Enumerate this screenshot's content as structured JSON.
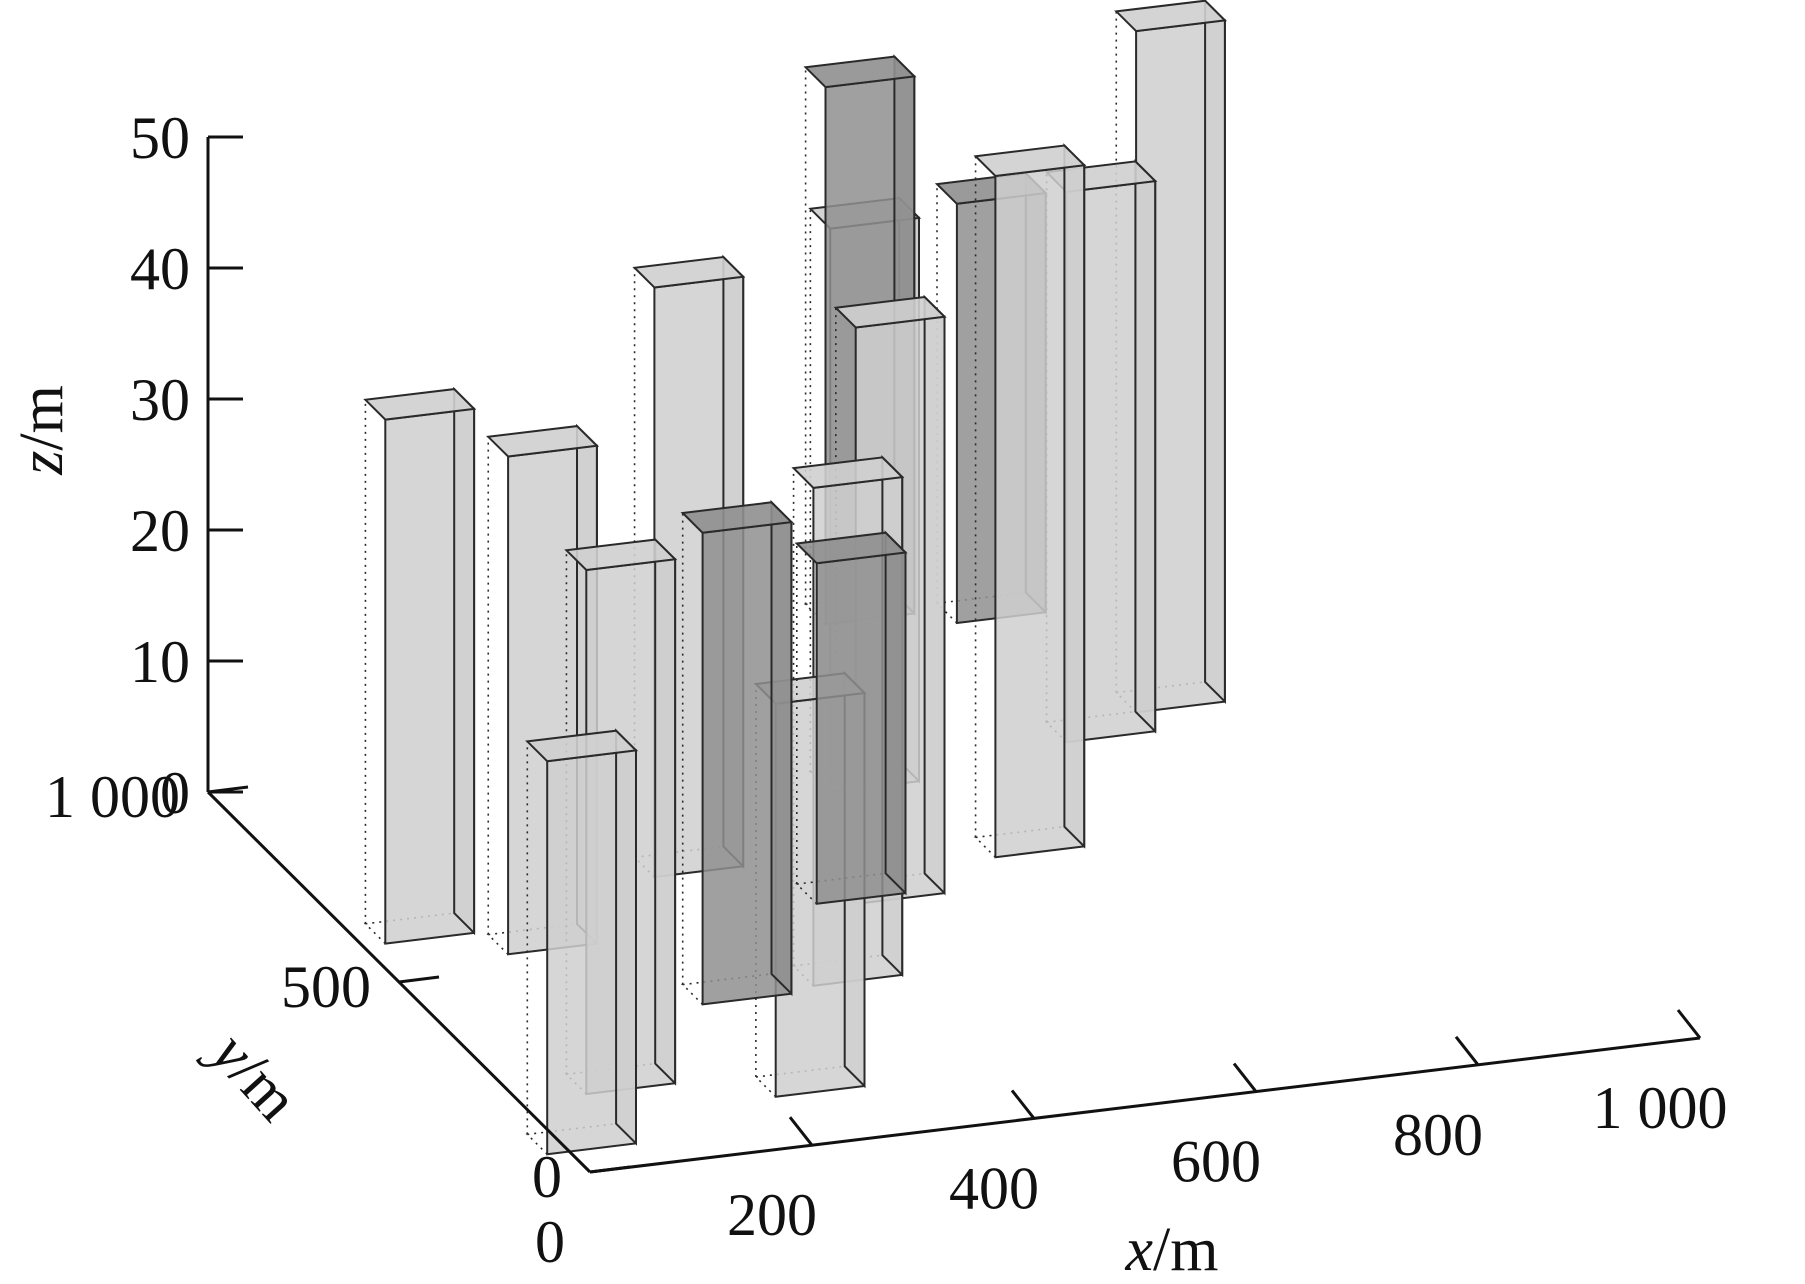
{
  "chart_data": {
    "type": "bar",
    "subtype": "3d-column",
    "title": "",
    "xlabel": {
      "var": "x",
      "unit": "/m"
    },
    "ylabel": {
      "var": "y",
      "unit": "/m"
    },
    "zlabel": {
      "var": "z",
      "unit": "/m"
    },
    "xlim": [
      0,
      1000
    ],
    "ylim": [
      0,
      1000
    ],
    "zlim": [
      0,
      50
    ],
    "x_ticks": [
      "0",
      "200",
      "400",
      "600",
      "800",
      "1 000"
    ],
    "y_ticks": [
      "0",
      "500",
      "1 000"
    ],
    "z_ticks": [
      "0",
      "10",
      "20",
      "30",
      "40",
      "50"
    ],
    "grid": false,
    "colors": {
      "light": "#cfcfcf",
      "dark": "#8f8f8f",
      "edge": "#2a2a2a"
    },
    "columns": [
      {
        "x": 20,
        "y": 80,
        "z0": 0,
        "z1": 30,
        "shade": "light"
      },
      {
        "x": 60,
        "y": 620,
        "z0": 0,
        "z1": 40,
        "shade": "light"
      },
      {
        "x": 150,
        "y": 560,
        "z0": 0,
        "z1": 38,
        "shade": "light"
      },
      {
        "x": 100,
        "y": 210,
        "z0": 0,
        "z1": 40,
        "shade": "light"
      },
      {
        "x": 160,
        "y": 80,
        "z0": 10,
        "z1": 46,
        "shade": "dark"
      },
      {
        "x": 250,
        "y": 150,
        "z0": 0,
        "z1": 30,
        "shade": "light"
      },
      {
        "x": 280,
        "y": 130,
        "z0": 15,
        "z1": 41,
        "shade": "dark"
      },
      {
        "x": 330,
        "y": 700,
        "z0": 0,
        "z1": 45,
        "shade": "light"
      },
      {
        "x": 370,
        "y": 400,
        "z0": 0,
        "z1": 38,
        "shade": "light"
      },
      {
        "x": 470,
        "y": 580,
        "z0": 0,
        "z1": 44,
        "shade": "light"
      },
      {
        "x": 460,
        "y": 630,
        "z0": 20,
        "z1": 61,
        "shade": "dark"
      },
      {
        "x": 540,
        "y": 850,
        "z0": 0,
        "z1": 43,
        "shade": "light"
      },
      {
        "x": 620,
        "y": 650,
        "z0": 0,
        "z1": 52,
        "shade": "light"
      },
      {
        "x": 630,
        "y": 780,
        "z0": 14,
        "z1": 46,
        "shade": "dark"
      },
      {
        "x": 770,
        "y": 900,
        "z0": 0,
        "z1": 42,
        "shade": "light"
      },
      {
        "x": 850,
        "y": 950,
        "z0": 0,
        "z1": 52,
        "shade": "light"
      }
    ]
  }
}
